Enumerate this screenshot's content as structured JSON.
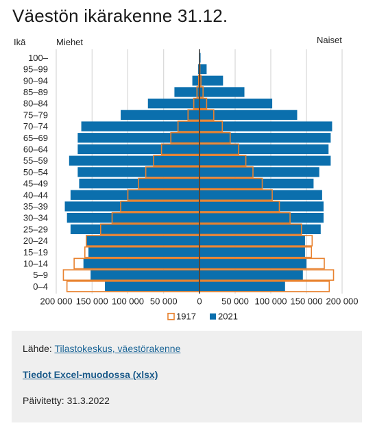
{
  "page": {
    "title": "Väestön ikärakenne 31.12."
  },
  "chart_data": {
    "type": "bar",
    "subtype": "population-pyramid",
    "y_axis_title": "Ikä",
    "left_label": "Miehet",
    "right_label": "Naiset",
    "categories": [
      "100–",
      "95–99",
      "90–94",
      "85–89",
      "80–84",
      "75–79",
      "70–74",
      "65–69",
      "60–64",
      "55–59",
      "50–54",
      "45–49",
      "40–44",
      "35–39",
      "30–34",
      "25–29",
      "20–24",
      "15–19",
      "10–14",
      "5–9",
      "0–4"
    ],
    "xlim": [
      -200000,
      200000
    ],
    "x_ticks": [
      -200000,
      -150000,
      -100000,
      -50000,
      0,
      50000,
      100000,
      150000,
      200000
    ],
    "x_tick_labels": [
      "200 000",
      "150 000",
      "100 000",
      "50 000",
      "0",
      "50 000",
      "100 000",
      "150 000",
      "200 000"
    ],
    "grid": true,
    "legend_position": "bottom",
    "series": [
      {
        "name": "2021",
        "style": "filled",
        "color": "#0b6fad",
        "men": [
          300,
          2000,
          10000,
          35000,
          72000,
          110000,
          165000,
          170000,
          170000,
          182000,
          170000,
          168000,
          180000,
          188000,
          185000,
          180000,
          158000,
          155000,
          162000,
          152000,
          132000
        ],
        "women": [
          1500,
          10000,
          33000,
          63000,
          102000,
          137000,
          186000,
          184000,
          181000,
          184000,
          168000,
          160000,
          172000,
          174000,
          174000,
          170000,
          148000,
          148000,
          150000,
          145000,
          120000
        ]
      },
      {
        "name": "1917",
        "style": "outline",
        "color": "#e8822f",
        "men": [
          0,
          300,
          1200,
          3500,
          8000,
          16000,
          30000,
          40000,
          53000,
          64000,
          75000,
          85000,
          100000,
          110000,
          122000,
          138000,
          158000,
          160000,
          175000,
          190000,
          185000
        ],
        "women": [
          0,
          500,
          2000,
          5000,
          10000,
          20000,
          32000,
          43000,
          55000,
          65000,
          75000,
          88000,
          102000,
          112000,
          127000,
          143000,
          158000,
          157000,
          175000,
          188000,
          182000
        ]
      }
    ]
  },
  "source": {
    "prefix": "Lähde: ",
    "link_text": "Tilastokeskus, väestörakenne",
    "excel_link": "Tiedot Excel-muodossa (xlsx)",
    "updated": "Päivitetty: 31.3.2022"
  }
}
